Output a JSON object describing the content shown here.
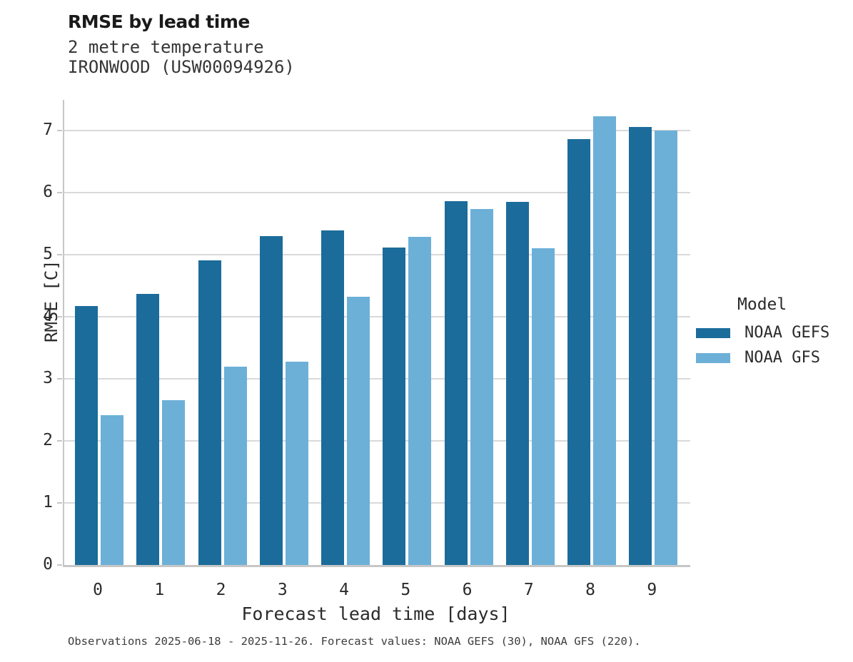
{
  "header": {
    "title": "RMSE by lead time",
    "subtitle_line1": "2 metre temperature",
    "subtitle_line2": "IRONWOOD (USW00094926)"
  },
  "colors": {
    "noaa_gefs": "#1b6c9b",
    "noaa_gfs": "#6cb0d8",
    "gridline": "#d9d9d9",
    "axis_line": "#c6c6c6",
    "title_text": "#1a1a1a",
    "tick_text": "#2b2b2b"
  },
  "chart_data": {
    "type": "bar",
    "title": "RMSE by lead time",
    "subtitle": "2 metre temperature IRONWOOD (USW00094926)",
    "xlabel": "Forecast lead time [days]",
    "ylabel": "RMSE [C]",
    "categories": [
      "0",
      "1",
      "2",
      "3",
      "4",
      "5",
      "6",
      "7",
      "8",
      "9"
    ],
    "series": [
      {
        "name": "NOAA GEFS",
        "color": "#1b6c9b",
        "values": [
          4.18,
          4.37,
          4.91,
          5.3,
          5.39,
          5.12,
          5.87,
          5.86,
          6.87,
          7.06
        ]
      },
      {
        "name": "NOAA GFS",
        "color": "#6cb0d8",
        "values": [
          2.42,
          2.66,
          3.2,
          3.28,
          4.33,
          5.29,
          5.74,
          5.11,
          7.23,
          7.0
        ]
      }
    ],
    "ylim": [
      0,
      7.5
    ],
    "y_ticks": [
      0,
      1,
      2,
      3,
      4,
      5,
      6,
      7
    ],
    "grid": true,
    "legend_title": "Model",
    "legend_position": "right",
    "caption": "Observations 2025-06-18 - 2025-11-26. Forecast values: NOAA GEFS (30), NOAA GFS (220)."
  }
}
